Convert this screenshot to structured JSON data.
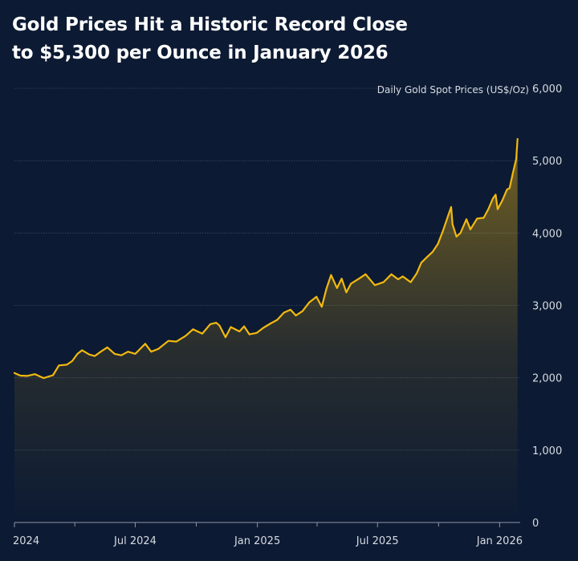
{
  "title": {
    "line1": "Gold Prices Hit a Historic Record Close",
    "line2": "to $5,300 per Ounce in January 2026"
  },
  "colors": {
    "background": "#0c1a33",
    "line": "#f2b90f",
    "grid": "#3a4860",
    "text": "#d7dbe3"
  },
  "chart_data": {
    "type": "area",
    "title": "Gold Prices Hit a Historic Record Close to $5,300 per Ounce in January 2026",
    "series_label": "Daily Gold Spot Prices (US$/Oz)",
    "y_unit": "US$/Oz",
    "ylim": [
      0,
      6000
    ],
    "y_ticks": [
      0,
      1000,
      2000,
      3000,
      4000,
      5000,
      6000
    ],
    "y_tick_labels": [
      "0",
      "1,000",
      "2,000",
      "3,000",
      "4,000",
      "5,000",
      "6,000"
    ],
    "xlim": [
      "2024-01-01",
      "2026-02-01"
    ],
    "x_ticks": [
      {
        "date": "2024-01-01",
        "label": "2024"
      },
      {
        "date": "2024-07-01",
        "label": "Jul 2024"
      },
      {
        "date": "2025-01-01",
        "label": "Jan 2025"
      },
      {
        "date": "2025-07-01",
        "label": "Jul 2025"
      },
      {
        "date": "2026-01-01",
        "label": "Jan 2026"
      }
    ],
    "x_minor_ticks": [
      "2024-04-01",
      "2024-10-01",
      "2025-04-01",
      "2025-10-01"
    ],
    "grid": true,
    "series": [
      {
        "name": "Daily Gold Spot Prices (US$/Oz)",
        "points": [
          [
            "2024-01-01",
            2065
          ],
          [
            "2024-01-10",
            2030
          ],
          [
            "2024-01-20",
            2025
          ],
          [
            "2024-02-01",
            2050
          ],
          [
            "2024-02-14",
            1995
          ],
          [
            "2024-02-28",
            2035
          ],
          [
            "2024-03-08",
            2170
          ],
          [
            "2024-03-20",
            2180
          ],
          [
            "2024-03-28",
            2230
          ],
          [
            "2024-04-05",
            2330
          ],
          [
            "2024-04-12",
            2380
          ],
          [
            "2024-04-23",
            2320
          ],
          [
            "2024-05-01",
            2300
          ],
          [
            "2024-05-10",
            2360
          ],
          [
            "2024-05-20",
            2420
          ],
          [
            "2024-05-31",
            2330
          ],
          [
            "2024-06-10",
            2310
          ],
          [
            "2024-06-20",
            2360
          ],
          [
            "2024-07-01",
            2330
          ],
          [
            "2024-07-16",
            2470
          ],
          [
            "2024-07-25",
            2360
          ],
          [
            "2024-08-05",
            2400
          ],
          [
            "2024-08-20",
            2510
          ],
          [
            "2024-09-01",
            2500
          ],
          [
            "2024-09-15",
            2580
          ],
          [
            "2024-09-26",
            2670
          ],
          [
            "2024-10-10",
            2610
          ],
          [
            "2024-10-22",
            2740
          ],
          [
            "2024-10-31",
            2760
          ],
          [
            "2024-11-05",
            2720
          ],
          [
            "2024-11-14",
            2560
          ],
          [
            "2024-11-22",
            2700
          ],
          [
            "2024-12-05",
            2640
          ],
          [
            "2024-12-12",
            2710
          ],
          [
            "2024-12-20",
            2600
          ],
          [
            "2024-12-31",
            2620
          ],
          [
            "2025-01-10",
            2690
          ],
          [
            "2025-01-21",
            2750
          ],
          [
            "2025-01-31",
            2800
          ],
          [
            "2025-02-10",
            2900
          ],
          [
            "2025-02-20",
            2940
          ],
          [
            "2025-02-28",
            2860
          ],
          [
            "2025-03-10",
            2920
          ],
          [
            "2025-03-20",
            3040
          ],
          [
            "2025-03-31",
            3120
          ],
          [
            "2025-04-08",
            2980
          ],
          [
            "2025-04-15",
            3230
          ],
          [
            "2025-04-22",
            3420
          ],
          [
            "2025-05-01",
            3240
          ],
          [
            "2025-05-08",
            3370
          ],
          [
            "2025-05-15",
            3180
          ],
          [
            "2025-05-22",
            3300
          ],
          [
            "2025-06-05",
            3380
          ],
          [
            "2025-06-13",
            3430
          ],
          [
            "2025-06-27",
            3280
          ],
          [
            "2025-07-10",
            3320
          ],
          [
            "2025-07-22",
            3430
          ],
          [
            "2025-08-01",
            3360
          ],
          [
            "2025-08-08",
            3400
          ],
          [
            "2025-08-20",
            3320
          ],
          [
            "2025-08-29",
            3440
          ],
          [
            "2025-09-05",
            3590
          ],
          [
            "2025-09-15",
            3680
          ],
          [
            "2025-09-22",
            3740
          ],
          [
            "2025-09-30",
            3850
          ],
          [
            "2025-10-08",
            4040
          ],
          [
            "2025-10-15",
            4230
          ],
          [
            "2025-10-20",
            4360
          ],
          [
            "2025-10-22",
            4120
          ],
          [
            "2025-10-28",
            3950
          ],
          [
            "2025-11-03",
            4000
          ],
          [
            "2025-11-12",
            4190
          ],
          [
            "2025-11-18",
            4050
          ],
          [
            "2025-11-28",
            4200
          ],
          [
            "2025-12-08",
            4210
          ],
          [
            "2025-12-15",
            4330
          ],
          [
            "2025-12-22",
            4480
          ],
          [
            "2025-12-26",
            4530
          ],
          [
            "2025-12-29",
            4330
          ],
          [
            "2026-01-05",
            4450
          ],
          [
            "2026-01-12",
            4600
          ],
          [
            "2026-01-16",
            4620
          ],
          [
            "2026-01-21",
            4830
          ],
          [
            "2026-01-26",
            5020
          ],
          [
            "2026-01-28",
            5300
          ]
        ]
      }
    ]
  }
}
